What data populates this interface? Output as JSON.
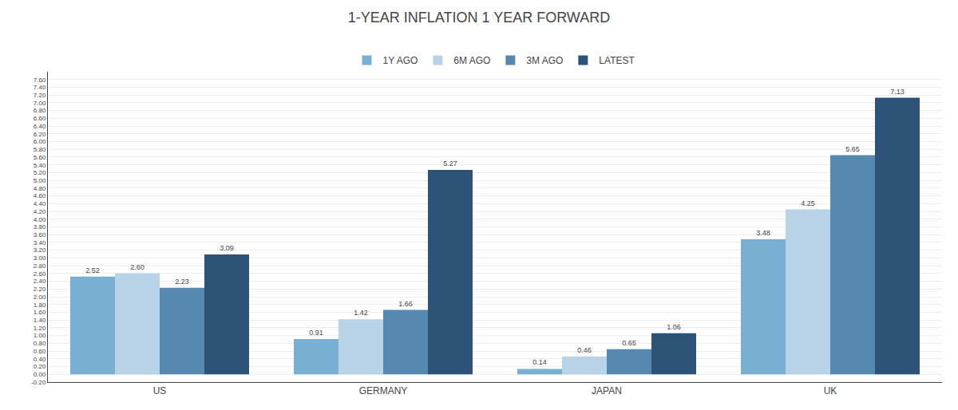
{
  "chart_data": {
    "type": "bar",
    "title": "1-YEAR INFLATION 1 YEAR FORWARD",
    "categories": [
      "US",
      "GERMANY",
      "JAPAN",
      "UK"
    ],
    "series": [
      {
        "name": "1Y AGO",
        "color": "#7aafd4",
        "values": [
          2.52,
          0.91,
          0.14,
          3.48
        ],
        "value_labels": [
          "2.52",
          "0.91",
          "0.14",
          "3.48"
        ]
      },
      {
        "name": "6M AGO",
        "color": "#b8d3e8",
        "values": [
          2.6,
          1.42,
          0.46,
          4.25
        ],
        "value_labels": [
          "2.60",
          "1.42",
          "0.46",
          "4.25"
        ]
      },
      {
        "name": "3M AGO",
        "color": "#5589b0",
        "values": [
          2.23,
          1.66,
          0.65,
          5.65
        ],
        "value_labels": [
          "2.23",
          "1.66",
          "0.65",
          "5.65"
        ]
      },
      {
        "name": "LATEST",
        "color": "#2d5278",
        "values": [
          3.09,
          5.27,
          1.06,
          7.13
        ],
        "value_labels": [
          "3.09",
          "5.27",
          "1.06",
          "7.13"
        ]
      }
    ],
    "ylim": [
      -0.2,
      7.8
    ],
    "yticks": [
      {
        "value": -0.2,
        "label": "-0.20"
      },
      {
        "value": 0,
        "label": "0.00"
      },
      {
        "value": 0.2,
        "label": "0.20"
      },
      {
        "value": 0.4,
        "label": "0.40"
      },
      {
        "value": 0.6,
        "label": "0.60"
      },
      {
        "value": 0.8,
        "label": "0.80"
      },
      {
        "value": 1,
        "label": "1.00"
      },
      {
        "value": 1.2,
        "label": "1.20"
      },
      {
        "value": 1.4,
        "label": "1.40"
      },
      {
        "value": 1.6,
        "label": "1.60"
      },
      {
        "value": 1.8,
        "label": "1.80"
      },
      {
        "value": 2,
        "label": "2.00"
      },
      {
        "value": 2.2,
        "label": "2.20"
      },
      {
        "value": 2.4,
        "label": "2.40"
      },
      {
        "value": 2.6,
        "label": "2.60"
      },
      {
        "value": 2.8,
        "label": "2.80"
      },
      {
        "value": 3,
        "label": "3.00"
      },
      {
        "value": 3.2,
        "label": "3.20"
      },
      {
        "value": 3.4,
        "label": "3.40"
      },
      {
        "value": 3.6,
        "label": "3.60"
      },
      {
        "value": 3.8,
        "label": "3.80"
      },
      {
        "value": 4,
        "label": "4.00"
      },
      {
        "value": 4.2,
        "label": "4.20"
      },
      {
        "value": 4.4,
        "label": "4.40"
      },
      {
        "value": 4.6,
        "label": "4.60"
      },
      {
        "value": 4.8,
        "label": "4.80"
      },
      {
        "value": 5,
        "label": "5.00"
      },
      {
        "value": 5.2,
        "label": "5.20"
      },
      {
        "value": 5.4,
        "label": "5.40"
      },
      {
        "value": 5.6,
        "label": "5.60"
      },
      {
        "value": 5.8,
        "label": "5.80"
      },
      {
        "value": 6,
        "label": "6.00"
      },
      {
        "value": 6.2,
        "label": "6.20"
      },
      {
        "value": 6.4,
        "label": "6.40"
      },
      {
        "value": 6.6,
        "label": "6.60"
      },
      {
        "value": 6.8,
        "label": "6.80"
      },
      {
        "value": 7,
        "label": "7.00"
      },
      {
        "value": 7.2,
        "label": "7.20"
      },
      {
        "value": 7.4,
        "label": "7.40"
      },
      {
        "value": 7.6,
        "label": "7.60"
      }
    ],
    "grid": true,
    "legend": "top",
    "data_labels": true
  }
}
